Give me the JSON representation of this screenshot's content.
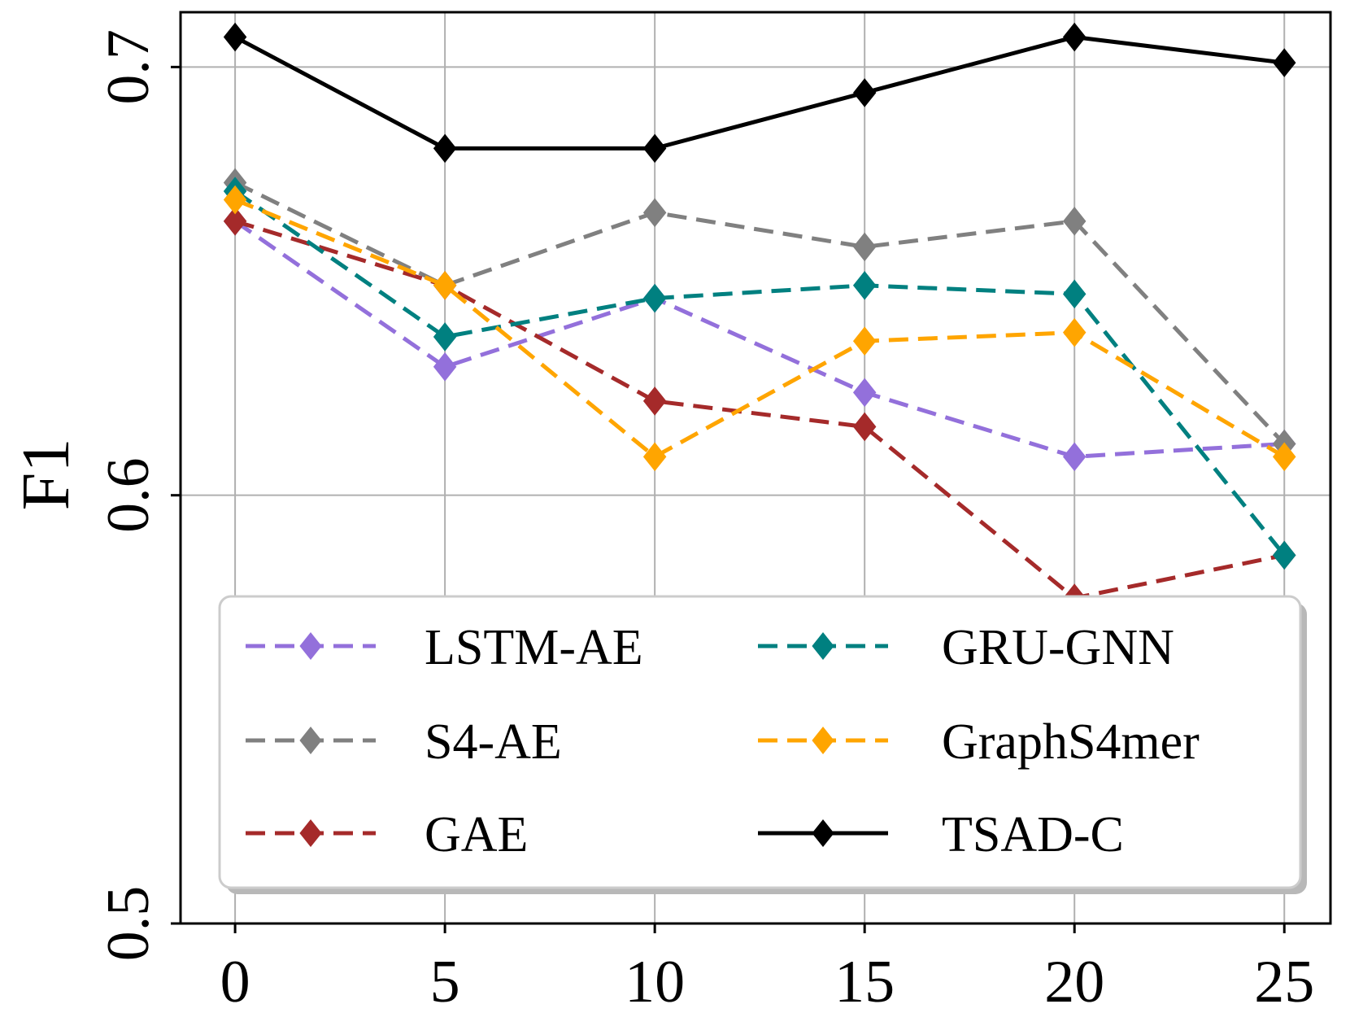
{
  "chart_data": {
    "type": "line",
    "title": "",
    "xlabel": "",
    "ylabel": "F1",
    "x": [
      0,
      5,
      10,
      15,
      20,
      25
    ],
    "xticks": [
      "0",
      "5",
      "10",
      "15",
      "20",
      "25"
    ],
    "yticks": [
      "0.5",
      "0.6",
      "0.7"
    ],
    "xlim": [
      -1.3,
      26.1
    ],
    "ylim": [
      0.5,
      0.7128
    ],
    "grid": true,
    "legend_position": "lower-center",
    "series": [
      {
        "name": "LSTM-AE",
        "color": "#9370DB",
        "dash": "dashed",
        "marker": "diamond",
        "values": [
          0.664,
          0.63,
          0.646,
          0.624,
          0.609,
          0.612
        ]
      },
      {
        "name": "S4-AE",
        "color": "#808080",
        "dash": "dashed",
        "marker": "diamond",
        "values": [
          0.673,
          0.649,
          0.666,
          0.658,
          0.664,
          0.612
        ]
      },
      {
        "name": "GAE",
        "color": "#A52A2A",
        "dash": "dashed",
        "marker": "diamond",
        "values": [
          0.664,
          0.649,
          0.622,
          0.616,
          0.576,
          0.586
        ]
      },
      {
        "name": "GRU-GNN",
        "color": "#008080",
        "dash": "dashed",
        "marker": "diamond",
        "values": [
          0.671,
          0.637,
          0.646,
          0.649,
          0.647,
          0.586
        ]
      },
      {
        "name": "GraphS4mer",
        "color": "#FFA500",
        "dash": "dashed",
        "marker": "diamond",
        "values": [
          0.669,
          0.649,
          0.609,
          0.636,
          0.638,
          0.609
        ]
      },
      {
        "name": "TSAD-C",
        "color": "#000000",
        "dash": "solid",
        "marker": "diamond",
        "values": [
          0.707,
          0.681,
          0.681,
          0.694,
          0.707,
          0.701
        ]
      }
    ]
  }
}
